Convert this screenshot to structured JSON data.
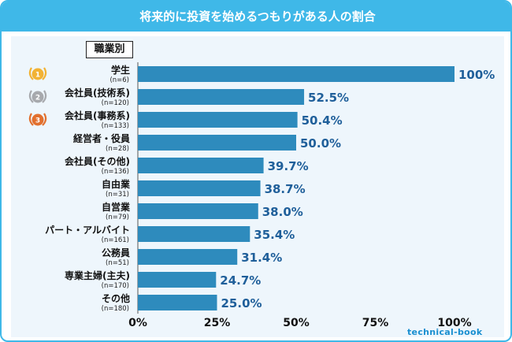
{
  "title": "将来的に投資を始めるつもりがある人の割合",
  "brand": "technical-book",
  "colors": {
    "accent": "#3fb8e8",
    "bar": "#2e8bbd",
    "value_text": "#1f5f9a",
    "panel": "#eef6fc"
  },
  "medals": [
    {
      "rank": "1",
      "color": "#f2b233",
      "icon": "gold-medal-icon"
    },
    {
      "rank": "2",
      "color": "#a7a9ad",
      "icon": "silver-medal-icon"
    },
    {
      "rank": "3",
      "color": "#e2702e",
      "icon": "bronze-medal-icon"
    }
  ],
  "chart_data": {
    "type": "bar",
    "orientation": "horizontal",
    "category_header": "職業別",
    "categories": [
      "学生",
      "会社員(技術系)",
      "会社員(事務系)",
      "経営者・役員",
      "会社員(その他)",
      "自由業",
      "自営業",
      "パート・アルバイト",
      "公務員",
      "専業主婦(主夫)",
      "その他"
    ],
    "n_labels": [
      "(n=6)",
      "(n=120)",
      "(n=133)",
      "(n=28)",
      "(n=136)",
      "(n=31)",
      "(n=79)",
      "(n=161)",
      "(n=51)",
      "(n=170)",
      "(n=180)"
    ],
    "values": [
      100,
      52.5,
      50.4,
      50.0,
      39.7,
      38.7,
      38.0,
      35.4,
      31.4,
      24.7,
      25.0
    ],
    "value_labels": [
      "100%",
      "52.5%",
      "50.4%",
      "50.0%",
      "39.7%",
      "38.7%",
      "38.0%",
      "35.4%",
      "31.4%",
      "24.7%",
      "25.0%"
    ],
    "xlim": [
      0,
      100
    ],
    "x_ticks": [
      "0%",
      "25%",
      "50%",
      "75%",
      "100%"
    ],
    "grid": false,
    "legend": "none"
  }
}
